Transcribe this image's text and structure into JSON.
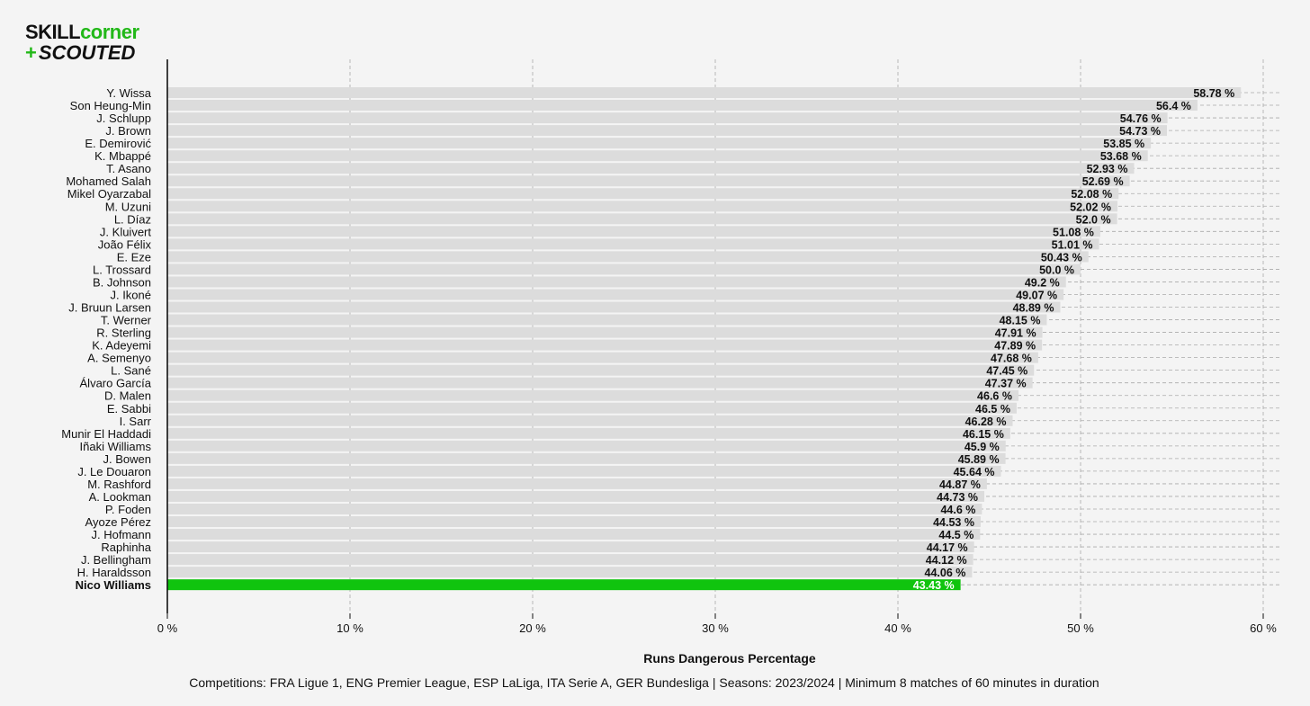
{
  "brand": {
    "line1_part1": "SKILL",
    "line1_part2": "corner",
    "line2_plus": "+",
    "line2_text": "SCOUTED",
    "colors": {
      "black": "#111111",
      "green": "#22b818"
    }
  },
  "chart_data": {
    "type": "bar",
    "orientation": "horizontal",
    "categories": [
      "Y. Wissa",
      "Son Heung-Min",
      "J. Schlupp",
      "J. Brown",
      "E. Demirović",
      "K. Mbappé",
      "T. Asano",
      "Mohamed Salah",
      "Mikel Oyarzabal",
      "M. Uzuni",
      "L. Díaz",
      "J. Kluivert",
      "João Félix",
      "E. Eze",
      "L. Trossard",
      "B. Johnson",
      "J. Ikoné",
      "J. Bruun Larsen",
      "T. Werner",
      "R. Sterling",
      "K. Adeyemi",
      "A. Semenyo",
      "L. Sané",
      "Álvaro García",
      "D. Malen",
      "E. Sabbi",
      "I. Sarr",
      "Munir El Haddadi",
      "Iñaki Williams",
      "J. Bowen",
      "J. Le Douaron",
      "M. Rashford",
      "A. Lookman",
      "P. Foden",
      "Ayoze Pérez",
      "J. Hofmann",
      "Raphinha",
      "J. Bellingham",
      "H. Haraldsson",
      "Nico Williams"
    ],
    "values": [
      58.78,
      56.4,
      54.76,
      54.73,
      53.85,
      53.68,
      52.93,
      52.69,
      52.08,
      52.02,
      52.0,
      51.08,
      51.01,
      50.43,
      50.0,
      49.2,
      49.07,
      48.89,
      48.15,
      47.91,
      47.89,
      47.68,
      47.45,
      47.37,
      46.6,
      46.5,
      46.28,
      46.15,
      45.9,
      45.89,
      45.64,
      44.87,
      44.73,
      44.6,
      44.53,
      44.5,
      44.17,
      44.12,
      44.06,
      43.43
    ],
    "value_labels": [
      "58.78 %",
      "56.4 %",
      "54.76 %",
      "54.73 %",
      "53.85 %",
      "53.68 %",
      "52.93 %",
      "52.69 %",
      "52.08 %",
      "52.02 %",
      "52.0 %",
      "51.08 %",
      "51.01 %",
      "50.43 %",
      "50.0 %",
      "49.2 %",
      "49.07 %",
      "48.89 %",
      "48.15 %",
      "47.91 %",
      "47.89 %",
      "47.68 %",
      "47.45 %",
      "47.37 %",
      "46.6 %",
      "46.5 %",
      "46.28 %",
      "46.15 %",
      "45.9 %",
      "45.89 %",
      "45.64 %",
      "44.87 %",
      "44.73 %",
      "44.6 %",
      "44.53 %",
      "44.5 %",
      "44.17 %",
      "44.12 %",
      "44.06 %",
      "43.43 %"
    ],
    "highlight": "Nico Williams",
    "xlim": [
      0,
      60
    ],
    "xticks": [
      0,
      10,
      20,
      30,
      40,
      50,
      60
    ],
    "xtick_labels": [
      "0 %",
      "10 %",
      "20 %",
      "30 %",
      "40 %",
      "50 %",
      "60 %"
    ],
    "xlabel": "Runs Dangerous Percentage",
    "ylabel": "",
    "title": "",
    "grid": "dashed vertical and horizontal",
    "colors": {
      "bar": "#dcdcdc",
      "highlight": "#10c40e",
      "grid": "#aaaaaa"
    }
  },
  "footnote": "Competitions: FRA Ligue 1, ENG Premier League, ESP LaLiga, ITA Serie A, GER Bundesliga | Seasons: 2023/2024 | Minimum 8 matches of 60 minutes in duration"
}
